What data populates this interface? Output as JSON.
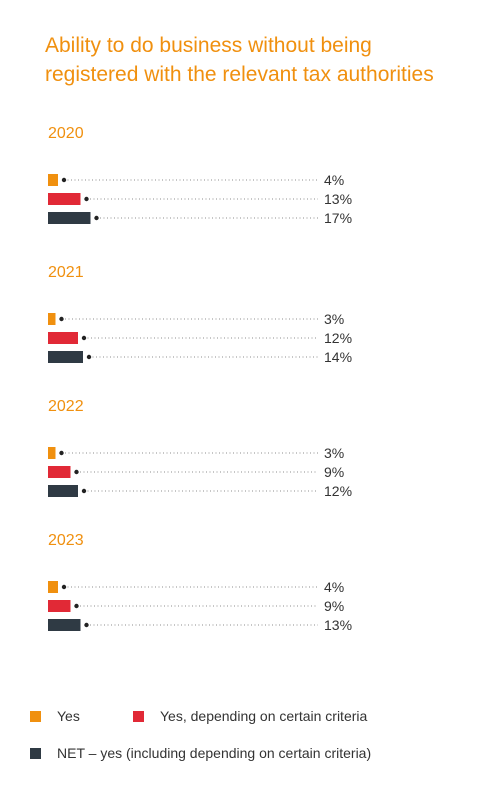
{
  "title": "Ability to do business without being registered with the relevant tax authorities",
  "colors": {
    "title": "#f0900f",
    "yes": "#f0900f",
    "yes_criteria": "#e12936",
    "net": "#2f3a44",
    "group_label": "#f0900f",
    "value_label": "#333333",
    "leader": "#444444"
  },
  "legend": {
    "yes": "Yes",
    "yes_criteria": "Yes, depending on certain criteria",
    "net": "NET – yes (including depending on certain criteria)"
  },
  "chart_data": {
    "type": "bar",
    "orientation": "horizontal",
    "categories": [
      "2020",
      "2021",
      "2022",
      "2023"
    ],
    "unit": "%",
    "series": [
      {
        "name": "Yes",
        "key": "yes",
        "values": [
          4,
          3,
          3,
          4
        ],
        "labels": [
          "4%",
          "3%",
          "3%",
          "4%"
        ]
      },
      {
        "name": "Yes, depending on certain criteria",
        "key": "yes_criteria",
        "values": [
          13,
          12,
          9,
          9
        ],
        "labels": [
          "13%",
          "12%",
          "9%",
          "9%"
        ]
      },
      {
        "name": "NET – yes (including depending on certain criteria)",
        "key": "net",
        "values": [
          17,
          14,
          12,
          13
        ],
        "labels": [
          "17%",
          "14%",
          "12%",
          "13%"
        ]
      }
    ],
    "legend_position": "bottom",
    "grid": false
  }
}
